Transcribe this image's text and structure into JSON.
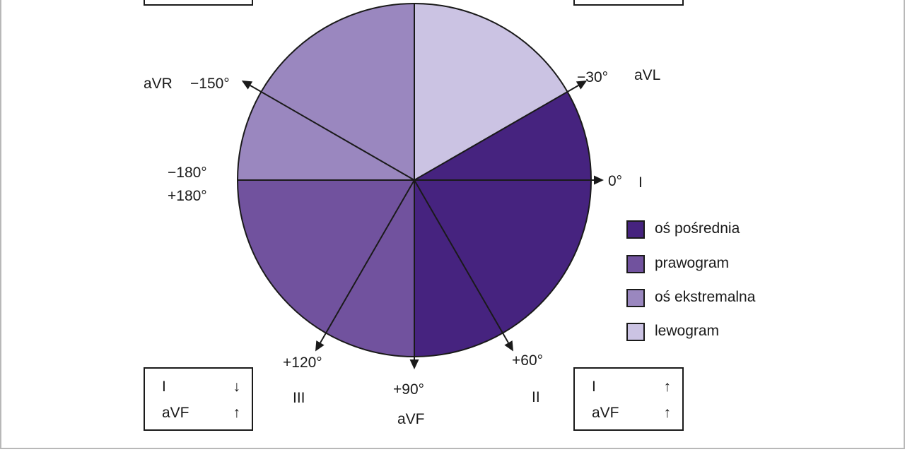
{
  "angles": {
    "minus30": "−30°",
    "zero": "0°",
    "plus60": "+60°",
    "plus90": "+90°",
    "plus120": "+120°",
    "minus150": "−150°",
    "minus180": "−180°",
    "plus180": "+180°"
  },
  "leads": {
    "aVL": "aVL",
    "I": "I",
    "II": "II",
    "aVF": "aVF",
    "III": "III",
    "aVR": "aVR"
  },
  "legend": [
    {
      "label": "oś pośrednia",
      "color": "#46237f"
    },
    {
      "label": "prawogram",
      "color": "#71529e"
    },
    {
      "label": "oś ekstremalna",
      "color": "#9a87bf"
    },
    {
      "label": "lewogram",
      "color": "#cbc3e3"
    }
  ],
  "box_left": {
    "rows": [
      {
        "lead": "I",
        "arrow": "↓"
      },
      {
        "lead": "aVF",
        "arrow": "↑"
      }
    ]
  },
  "box_right": {
    "rows": [
      {
        "lead": "I",
        "arrow": "↑"
      },
      {
        "lead": "aVF",
        "arrow": "↑"
      }
    ]
  },
  "sectors": [
    {
      "name": "lewogram",
      "from": -90,
      "to": -30,
      "color": "#cbc3e3"
    },
    {
      "name": "oś pośrednia",
      "from": -30,
      "to": 90,
      "color": "#46237f"
    },
    {
      "name": "prawogram",
      "from": 90,
      "to": 180,
      "color": "#71529e"
    },
    {
      "name": "oś ekstremalna",
      "from": 180,
      "to": 270,
      "color": "#9a87bf"
    }
  ]
}
